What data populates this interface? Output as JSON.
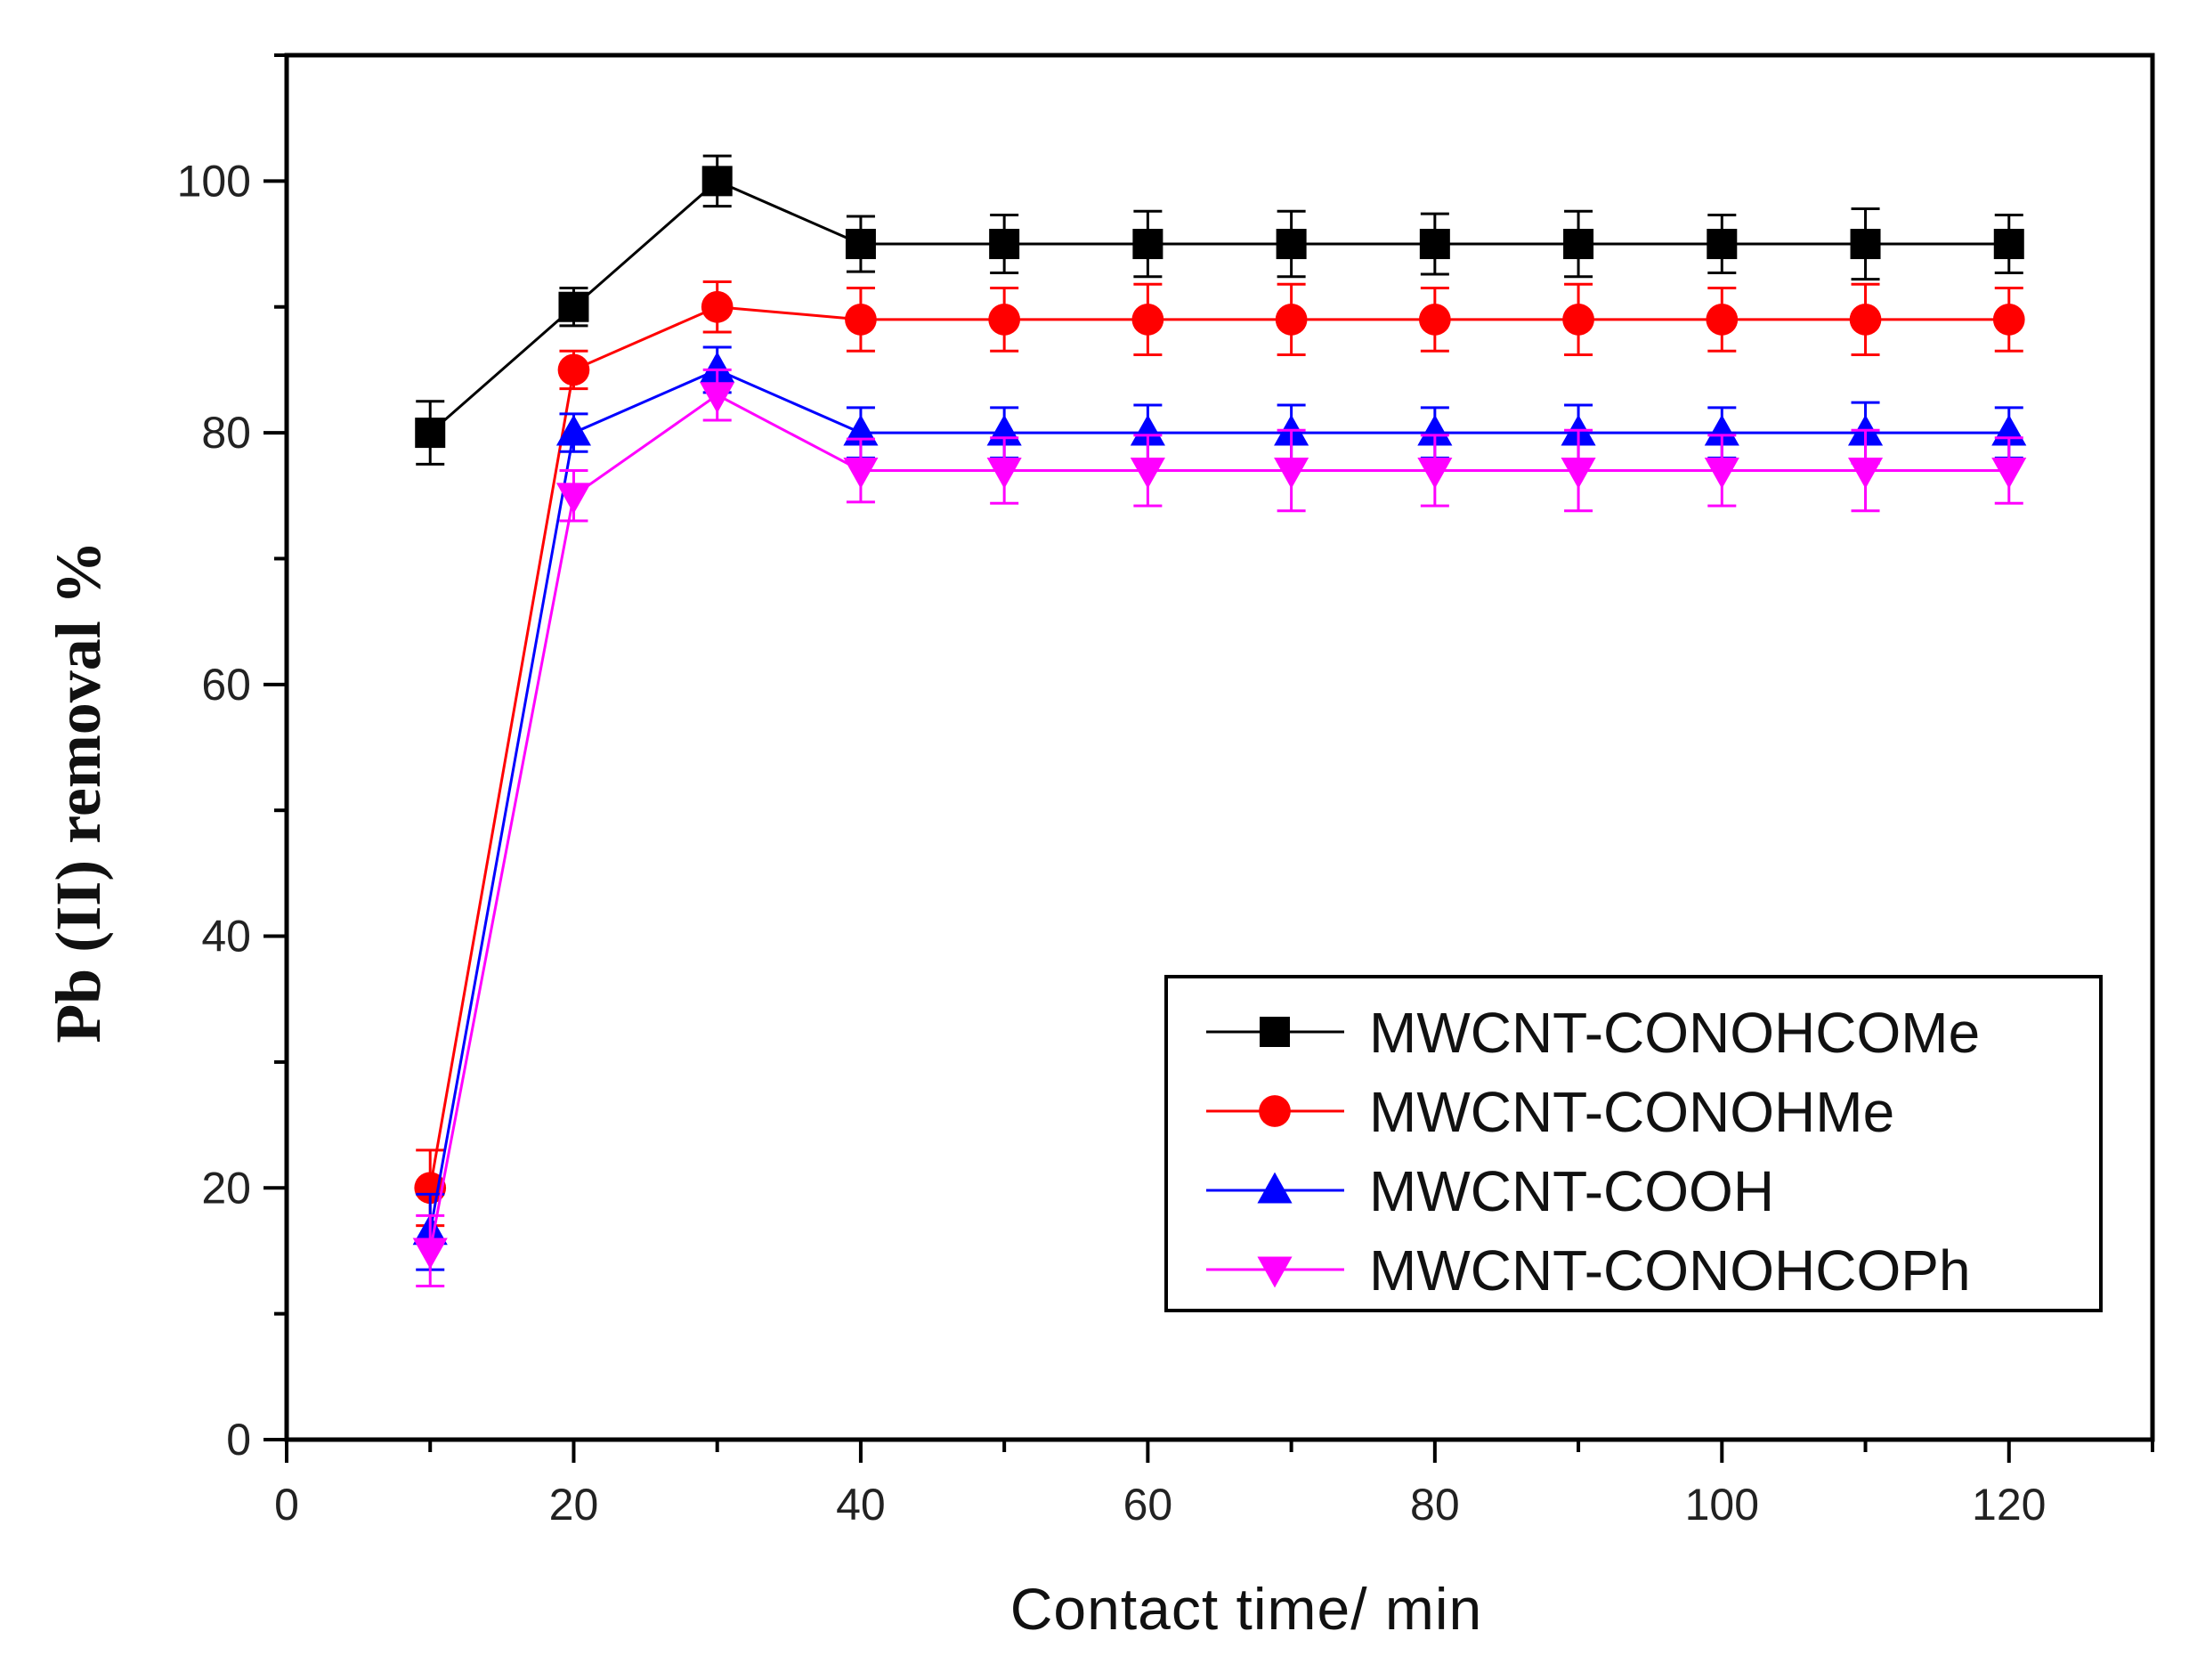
{
  "chart_data": {
    "type": "line",
    "title": "",
    "xlabel": "Contact time/ min",
    "ylabel": "Pb (II) removal %",
    "xlim": [
      0,
      130
    ],
    "ylim": [
      0,
      110
    ],
    "xticks": [
      0,
      20,
      40,
      60,
      80,
      100,
      120
    ],
    "yticks": [
      0,
      20,
      40,
      60,
      80,
      100
    ],
    "grid": false,
    "legend_position": "lower-right",
    "x": [
      10,
      20,
      30,
      40,
      50,
      60,
      70,
      80,
      90,
      100,
      110,
      120
    ],
    "series": [
      {
        "name": "MWCNT-CONOHCOMe",
        "color": "#000000",
        "marker": "square",
        "values": [
          80,
          90,
          100,
          95,
          95,
          95,
          95,
          95,
          95,
          95,
          95,
          95
        ],
        "errors": [
          2.5,
          1.5,
          2,
          2.2,
          2.3,
          2.6,
          2.6,
          2.4,
          2.6,
          2.3,
          2.8,
          2.3
        ]
      },
      {
        "name": "MWCNT-CONOHMe",
        "color": "#ff0000",
        "marker": "circle",
        "values": [
          20,
          85,
          90,
          89,
          89,
          89,
          89,
          89,
          89,
          89,
          89,
          89
        ],
        "errors": [
          3,
          1.5,
          2,
          2.5,
          2.5,
          2.8,
          2.8,
          2.5,
          2.8,
          2.5,
          2.8,
          2.5
        ]
      },
      {
        "name": "MWCNT-COOH",
        "color": "#0000ff",
        "marker": "triangle-up",
        "values": [
          16.5,
          80,
          85,
          80,
          80,
          80,
          80,
          80,
          80,
          80,
          80,
          80
        ],
        "errors": [
          3,
          1.5,
          1.8,
          2,
          2,
          2.2,
          2.2,
          2,
          2.2,
          2,
          2.4,
          2
        ]
      },
      {
        "name": "MWCNT-CONOHCOPh",
        "color": "#ff00ff",
        "marker": "triangle-down",
        "values": [
          15,
          75,
          83,
          77,
          77,
          77,
          77,
          77,
          77,
          77,
          77,
          77
        ],
        "errors": [
          2.8,
          2,
          2,
          2.5,
          2.6,
          2.8,
          3.2,
          2.8,
          3.2,
          2.8,
          3.2,
          2.6
        ]
      }
    ]
  }
}
